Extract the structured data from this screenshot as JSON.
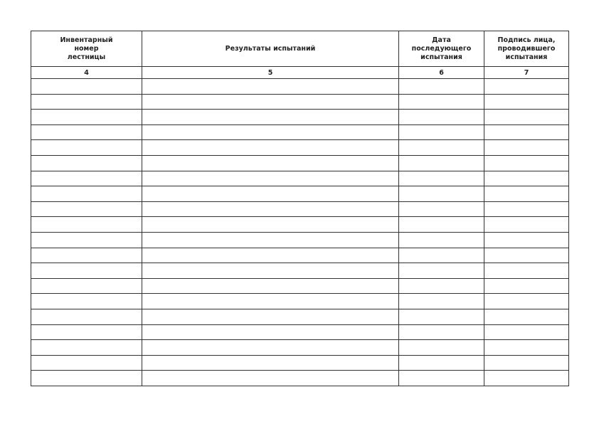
{
  "columns": [
    {
      "header": "Инвентарный номер лестницы",
      "lines": [
        "Инвентарный",
        "номер",
        "лестницы"
      ],
      "number": "4"
    },
    {
      "header": "Результаты испытаний",
      "lines": [
        "Результаты испытаний"
      ],
      "number": "5"
    },
    {
      "header": "Дата последующего испытания",
      "lines": [
        "Дата",
        "последующего",
        "испытания"
      ],
      "number": "6"
    },
    {
      "header": "Подпись лица, проводившего испытания",
      "lines": [
        "Подпись лица,",
        "проводившего",
        "испытания"
      ],
      "number": "7"
    }
  ],
  "empty_row_count": 20
}
